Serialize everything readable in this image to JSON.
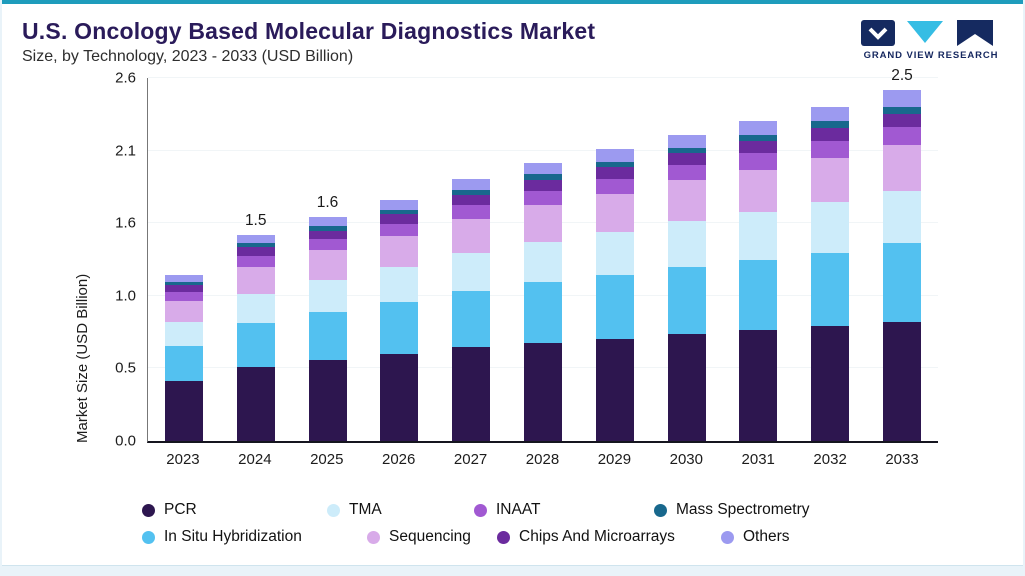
{
  "header": {
    "title": "U.S. Oncology Based Molecular Diagnostics Market",
    "subtitle": "Size, by Technology, 2023 - 2033 (USD Billion)",
    "logo_text": "GRAND VIEW RESEARCH"
  },
  "colors": {
    "top_accent": "#1e9cbc",
    "page_background": "#e9f3f9",
    "title_color": "#2a1b5a"
  },
  "chart_data": {
    "type": "bar",
    "stacked": true,
    "title": "U.S. Oncology Based Molecular Diagnostics Market",
    "subtitle": "Size, by Technology, 2023 - 2033 (USD Billion)",
    "ylabel": "Market Size (USD Billion)",
    "ylim": [
      0,
      2.6
    ],
    "ytick_labels": [
      "0.0",
      "0.5",
      "1.0",
      "1.6",
      "2.1",
      "2.6"
    ],
    "grid": "none",
    "legend_position": "bottom",
    "categories": [
      "2023",
      "2024",
      "2025",
      "2026",
      "2027",
      "2028",
      "2029",
      "2030",
      "2031",
      "2032",
      "2033"
    ],
    "totals_labels": [
      "",
      "1.5",
      "1.6",
      "",
      "",
      "",
      "",
      "",
      "",
      "",
      "2.5"
    ],
    "series": [
      {
        "name": "PCR",
        "color": "#2d164f",
        "values": [
          0.43,
          0.53,
          0.58,
          0.62,
          0.67,
          0.7,
          0.73,
          0.76,
          0.79,
          0.82,
          0.85
        ]
      },
      {
        "name": "In Situ Hybridization",
        "color": "#53c1f0",
        "values": [
          0.25,
          0.31,
          0.34,
          0.37,
          0.4,
          0.43,
          0.45,
          0.48,
          0.5,
          0.52,
          0.56
        ]
      },
      {
        "name": "TMA",
        "color": "#cdecfa",
        "values": [
          0.17,
          0.21,
          0.23,
          0.25,
          0.27,
          0.29,
          0.31,
          0.33,
          0.34,
          0.36,
          0.37
        ]
      },
      {
        "name": "Sequencing",
        "color": "#d8abe9",
        "values": [
          0.15,
          0.19,
          0.21,
          0.22,
          0.24,
          0.26,
          0.27,
          0.29,
          0.3,
          0.32,
          0.33
        ]
      },
      {
        "name": "INAAT",
        "color": "#a159d2",
        "values": [
          0.06,
          0.08,
          0.08,
          0.09,
          0.1,
          0.1,
          0.11,
          0.11,
          0.12,
          0.12,
          0.13
        ]
      },
      {
        "name": "Chips And Microarrays",
        "color": "#6b2b9e",
        "values": [
          0.05,
          0.06,
          0.06,
          0.07,
          0.07,
          0.08,
          0.08,
          0.08,
          0.09,
          0.09,
          0.09
        ]
      },
      {
        "name": "Mass Spectrometry",
        "color": "#18688d",
        "values": [
          0.02,
          0.03,
          0.03,
          0.03,
          0.04,
          0.04,
          0.04,
          0.04,
          0.04,
          0.05,
          0.05
        ]
      },
      {
        "name": "Others",
        "color": "#9c9af0",
        "values": [
          0.05,
          0.06,
          0.07,
          0.07,
          0.08,
          0.08,
          0.09,
          0.09,
          0.1,
          0.1,
          0.12
        ]
      }
    ],
    "legend_rows": [
      [
        "PCR",
        "TMA",
        "INAAT",
        "Mass Spectrometry"
      ],
      [
        "In Situ Hybridization",
        "Sequencing",
        "Chips And Microarrays",
        "Others"
      ]
    ]
  }
}
